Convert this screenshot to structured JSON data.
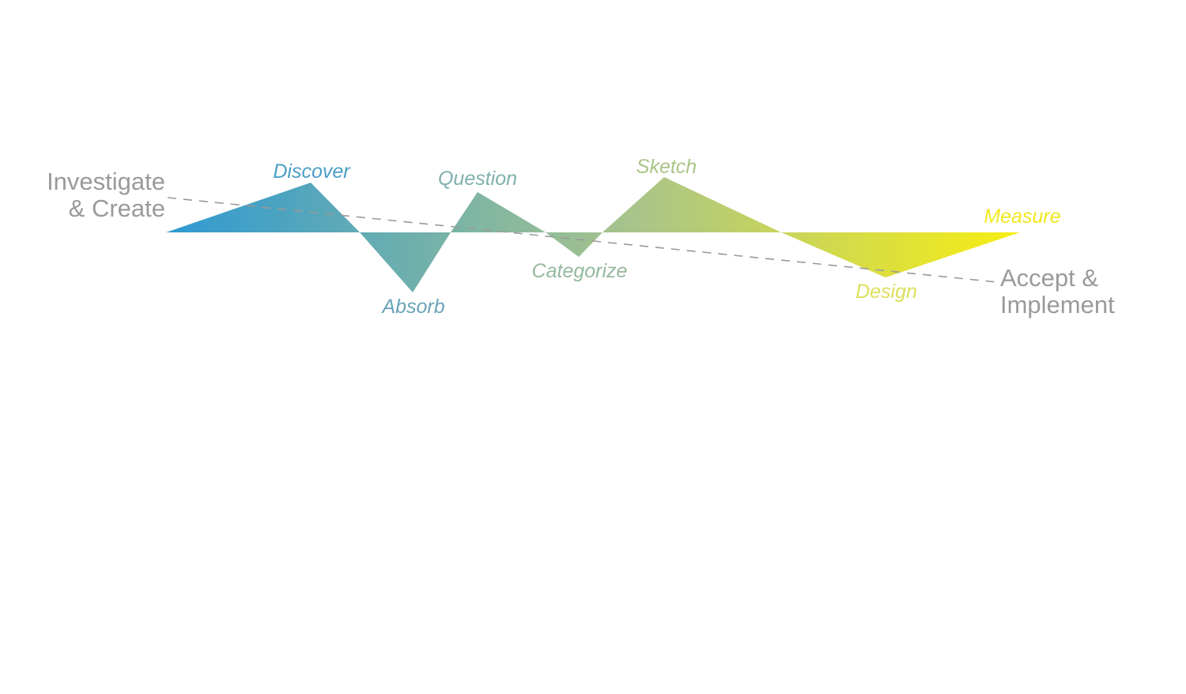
{
  "start_label": {
    "line1": "Investigate",
    "line2": "& Create"
  },
  "end_label": {
    "line1": "Accept &",
    "line2": "Implement"
  },
  "stages": [
    {
      "name": "discover",
      "label": "Discover",
      "direction": "up",
      "color": "#4b9ec8"
    },
    {
      "name": "absorb",
      "label": "Absorb",
      "direction": "down",
      "color": "#6aa4b8"
    },
    {
      "name": "question",
      "label": "Question",
      "direction": "up",
      "color": "#7fb0ae"
    },
    {
      "name": "categorize",
      "label": "Categorize",
      "direction": "down",
      "color": "#95b89c"
    },
    {
      "name": "sketch",
      "label": "Sketch",
      "direction": "up",
      "color": "#a9c486"
    },
    {
      "name": "design",
      "label": "Design",
      "direction": "down",
      "color": "#dede5a"
    },
    {
      "name": "measure",
      "label": "Measure",
      "direction": "end",
      "color": "#f0e81e"
    }
  ],
  "colors": {
    "gradient_start": "#2f99d2",
    "gradient_mid": "#a9c48a",
    "gradient_end": "#f8ee12",
    "dashed_line": "#9a9a9a",
    "endpoint_text": "#9a9a9a"
  }
}
